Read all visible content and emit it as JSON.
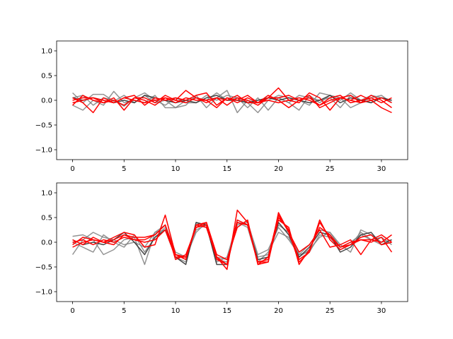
{
  "chart_data": [
    {
      "type": "line",
      "title": "",
      "xlabel": "",
      "ylabel": "",
      "xlim": [
        -1.55,
        32.55
      ],
      "ylim": [
        -1.2,
        1.2
      ],
      "xticks": [
        0,
        5,
        10,
        15,
        20,
        25,
        30
      ],
      "yticks": [
        -1.0,
        -0.5,
        0.0,
        0.5,
        1.0
      ],
      "xtick_labels": [
        "0",
        "5",
        "10",
        "15",
        "20",
        "25",
        "30"
      ],
      "ytick_labels": [
        "−1.0",
        "−0.5",
        "0.0",
        "0.5",
        "1.0"
      ],
      "grid": false,
      "colors": {
        "gray": "#808080",
        "dark": "#333333",
        "red": "#ff0000"
      },
      "series": [
        {
          "color": "gray",
          "opacity": 0.85,
          "values": [
            0.15,
            -0.05,
            0.12,
            0.12,
            -0.02,
            0.1,
            -0.05,
            0.1,
            -0.05,
            0.0,
            -0.15,
            -0.1,
            0.1,
            -0.15,
            0.05,
            0.2,
            -0.25,
            0.0,
            -0.05,
            0.05,
            0.05,
            -0.05,
            -0.2,
            0.1,
            -0.05,
            0.1,
            0.05,
            -0.15,
            -0.05,
            0.05,
            0.1,
            -0.05
          ]
        },
        {
          "color": "gray",
          "opacity": 0.85,
          "values": [
            -0.1,
            -0.2,
            0.0,
            -0.1,
            0.18,
            -0.05,
            0.0,
            -0.05,
            0.1,
            -0.15,
            -0.15,
            0.0,
            0.05,
            0.0,
            0.15,
            0.0,
            0.05,
            -0.05,
            -0.25,
            0.0,
            0.1,
            0.05,
            0.0,
            -0.1,
            0.15,
            0.1,
            0.0,
            0.15,
            0.0,
            -0.05,
            0.05,
            0.0
          ]
        },
        {
          "color": "gray",
          "opacity": 0.85,
          "values": [
            0.05,
            0.1,
            -0.1,
            0.05,
            0.0,
            -0.12,
            0.05,
            0.15,
            0.0,
            -0.1,
            0.05,
            -0.05,
            -0.05,
            0.1,
            0.0,
            0.1,
            0.05,
            -0.15,
            0.05,
            -0.2,
            0.05,
            -0.05,
            0.1,
            0.05,
            0.0,
            0.05,
            -0.15,
            0.1,
            0.0,
            0.1,
            0.05,
            0.0
          ]
        },
        {
          "color": "dark",
          "opacity": 0.9,
          "values": [
            0.05,
            0.0,
            0.05,
            0.0,
            -0.05,
            0.0,
            -0.05,
            0.1,
            0.05,
            0.0,
            -0.05,
            0.0,
            -0.05,
            0.05,
            0.1,
            0.0,
            0.0,
            -0.05,
            0.0,
            0.05,
            0.0,
            0.05,
            0.0,
            -0.05,
            0.0,
            0.1,
            -0.05,
            0.05,
            0.0,
            -0.05,
            0.05,
            0.0
          ]
        },
        {
          "color": "red",
          "opacity": 1,
          "values": [
            -0.1,
            0.1,
            0.0,
            -0.05,
            0.05,
            -0.2,
            0.05,
            0.0,
            -0.1,
            0.05,
            0.0,
            0.2,
            0.05,
            -0.05,
            0.05,
            -0.1,
            0.05,
            0.0,
            -0.1,
            0.05,
            0.25,
            0.0,
            -0.05,
            0.15,
            0.05,
            -0.2,
            0.05,
            0.1,
            -0.05,
            0.1,
            0.0,
            -0.15
          ]
        },
        {
          "color": "red",
          "opacity": 1,
          "values": [
            0.05,
            -0.05,
            -0.25,
            0.05,
            -0.05,
            0.05,
            0.1,
            -0.1,
            0.05,
            0.0,
            0.05,
            0.0,
            0.1,
            0.15,
            -0.1,
            0.05,
            -0.05,
            0.05,
            -0.05,
            0.1,
            0.0,
            -0.15,
            0.0,
            0.1,
            -0.15,
            -0.05,
            0.05,
            0.0,
            0.1,
            0.0,
            0.05,
            -0.05
          ]
        },
        {
          "color": "red",
          "opacity": 1,
          "values": [
            0.0,
            0.05,
            0.05,
            -0.05,
            0.0,
            -0.1,
            0.05,
            0.05,
            -0.05,
            0.1,
            0.0,
            -0.05,
            0.05,
            0.0,
            0.05,
            0.0,
            0.1,
            -0.05,
            -0.05,
            0.05,
            0.05,
            0.1,
            0.0,
            0.05,
            -0.1,
            0.05,
            0.1,
            -0.05,
            0.0,
            0.05,
            -0.05,
            0.05
          ]
        },
        {
          "color": "red",
          "opacity": 1,
          "values": [
            -0.05,
            0.0,
            0.05,
            0.0,
            -0.05,
            0.05,
            0.0,
            -0.05,
            0.0,
            0.05,
            -0.05,
            0.05,
            0.0,
            0.0,
            -0.15,
            0.05,
            0.0,
            0.1,
            -0.05,
            0.0,
            -0.05,
            0.0,
            0.05,
            0.0,
            -0.1,
            0.0,
            0.05,
            0.0,
            -0.05,
            0.0,
            -0.15,
            -0.25
          ]
        }
      ]
    },
    {
      "type": "line",
      "title": "",
      "xlabel": "",
      "ylabel": "",
      "xlim": [
        -1.55,
        32.55
      ],
      "ylim": [
        -1.2,
        1.2
      ],
      "xticks": [
        0,
        5,
        10,
        15,
        20,
        25,
        30
      ],
      "yticks": [
        -1.0,
        -0.5,
        0.0,
        0.5,
        1.0
      ],
      "xtick_labels": [
        "0",
        "5",
        "10",
        "15",
        "20",
        "25",
        "30"
      ],
      "ytick_labels": [
        "−1.0",
        "−0.5",
        "0.0",
        "0.5",
        "1.0"
      ],
      "grid": false,
      "colors": {
        "gray": "#808080",
        "dark": "#333333",
        "red": "#ff0000"
      },
      "series": [
        {
          "color": "gray",
          "opacity": 0.85,
          "values": [
            0.12,
            0.15,
            0.05,
            -0.25,
            -0.15,
            0.05,
            0.1,
            -0.45,
            0.2,
            0.25,
            -0.3,
            -0.4,
            0.4,
            0.3,
            -0.35,
            -0.4,
            0.45,
            0.35,
            -0.3,
            -0.25,
            0.35,
            0.2,
            -0.25,
            -0.05,
            0.25,
            0.2,
            -0.05,
            -0.2,
            0.25,
            0.15,
            0.0,
            0.05
          ]
        },
        {
          "color": "gray",
          "opacity": 0.85,
          "values": [
            -0.25,
            0.05,
            0.2,
            0.1,
            0.05,
            -0.05,
            0.0,
            -0.1,
            0.2,
            0.35,
            -0.2,
            -0.3,
            0.2,
            0.4,
            -0.3,
            -0.35,
            0.35,
            0.4,
            -0.25,
            -0.15,
            0.3,
            0.05,
            -0.25,
            -0.2,
            0.15,
            0.1,
            -0.15,
            -0.05,
            0.2,
            0.05,
            -0.05,
            0.0
          ]
        },
        {
          "color": "gray",
          "opacity": 0.85,
          "values": [
            0.0,
            -0.1,
            -0.2,
            0.15,
            0.0,
            -0.1,
            0.15,
            -0.2,
            0.1,
            0.3,
            -0.25,
            -0.35,
            0.25,
            0.35,
            -0.4,
            -0.3,
            0.4,
            0.3,
            -0.4,
            -0.2,
            0.2,
            0.1,
            -0.3,
            -0.15,
            0.1,
            0.2,
            -0.1,
            0.0,
            0.15,
            0.05,
            0.1,
            -0.05
          ]
        },
        {
          "color": "dark",
          "opacity": 0.9,
          "values": [
            0.05,
            -0.05,
            0.0,
            -0.05,
            0.05,
            0.2,
            0.0,
            -0.25,
            0.1,
            0.25,
            -0.3,
            -0.45,
            0.4,
            0.35,
            -0.45,
            -0.45,
            0.4,
            0.35,
            -0.35,
            -0.3,
            0.4,
            0.15,
            -0.3,
            -0.1,
            0.2,
            0.15,
            -0.2,
            -0.1,
            0.15,
            0.2,
            -0.05,
            0.05
          ]
        },
        {
          "color": "red",
          "opacity": 1,
          "values": [
            -0.05,
            0.1,
            0.05,
            0.0,
            0.1,
            0.2,
            0.15,
            -0.1,
            -0.05,
            0.55,
            -0.25,
            -0.35,
            0.35,
            0.4,
            -0.3,
            -0.55,
            0.65,
            0.4,
            -0.45,
            -0.4,
            0.6,
            0.2,
            -0.4,
            -0.2,
            0.45,
            0.05,
            -0.15,
            -0.05,
            0.05,
            0.0,
            0.1,
            -0.2
          ]
        },
        {
          "color": "red",
          "opacity": 1,
          "values": [
            0.05,
            -0.05,
            0.1,
            0.0,
            0.05,
            0.15,
            0.05,
            0.05,
            0.15,
            0.35,
            -0.35,
            -0.25,
            0.3,
            0.4,
            -0.25,
            -0.35,
            0.3,
            0.45,
            -0.45,
            -0.3,
            0.55,
            0.2,
            -0.2,
            -0.05,
            0.25,
            -0.1,
            -0.05,
            0.05,
            -0.25,
            0.05,
            0.15,
            0.0
          ]
        },
        {
          "color": "red",
          "opacity": 1,
          "values": [
            0.0,
            0.05,
            -0.05,
            0.05,
            0.0,
            0.1,
            0.05,
            0.0,
            0.05,
            0.25,
            -0.3,
            -0.3,
            0.3,
            0.35,
            -0.35,
            -0.45,
            0.4,
            0.35,
            -0.4,
            -0.35,
            0.45,
            0.3,
            -0.45,
            -0.15,
            0.3,
            0.15,
            -0.1,
            -0.05,
            0.1,
            0.15,
            -0.05,
            0.0
          ]
        },
        {
          "color": "red",
          "opacity": 1,
          "values": [
            -0.1,
            0.0,
            0.05,
            0.0,
            -0.05,
            0.15,
            0.1,
            0.1,
            0.15,
            0.35,
            -0.25,
            -0.3,
            0.35,
            0.3,
            -0.3,
            -0.45,
            0.45,
            0.35,
            -0.4,
            -0.4,
            0.5,
            0.25,
            -0.35,
            -0.2,
            0.4,
            0.1,
            -0.1,
            0.0,
            0.05,
            0.05,
            0.0,
            0.15
          ]
        }
      ]
    }
  ]
}
